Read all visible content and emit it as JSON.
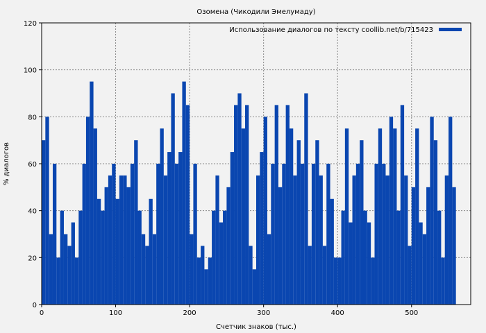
{
  "chart_data": {
    "type": "bar",
    "title": "Озомена (Чикодили Эмелумаду)",
    "xlabel": "Счетчик знаков (тыс.)",
    "ylabel": "% диалогов",
    "legend": {
      "label": "Использование диалогов по тексту coollib.net/b/715423",
      "placement": "top-right"
    },
    "xlim": [
      0,
      580
    ],
    "ylim": [
      0,
      120
    ],
    "xticks": [
      0,
      100,
      200,
      300,
      400,
      500
    ],
    "yticks": [
      0,
      20,
      40,
      60,
      80,
      100,
      120
    ],
    "grid": true,
    "color": "#0a46b0",
    "bin_width": 5,
    "x_start": 0,
    "values": [
      70,
      80,
      30,
      60,
      20,
      40,
      30,
      25,
      35,
      20,
      40,
      60,
      80,
      95,
      75,
      45,
      40,
      50,
      55,
      60,
      45,
      55,
      55,
      50,
      60,
      70,
      40,
      30,
      25,
      45,
      30,
      60,
      75,
      55,
      65,
      90,
      60,
      65,
      95,
      85,
      30,
      60,
      20,
      25,
      15,
      20,
      40,
      55,
      35,
      40,
      50,
      65,
      85,
      90,
      75,
      85,
      25,
      15,
      55,
      65,
      80,
      30,
      60,
      85,
      50,
      60,
      85,
      75,
      55,
      70,
      60,
      90,
      25,
      60,
      70,
      55,
      25,
      60,
      45,
      20,
      20,
      40,
      75,
      35,
      55,
      60,
      70,
      40,
      35,
      20,
      60,
      75,
      60,
      55,
      80,
      75,
      40,
      85,
      55,
      25,
      50,
      75,
      35,
      30,
      50,
      80,
      70,
      40,
      20,
      55,
      80,
      50
    ]
  }
}
